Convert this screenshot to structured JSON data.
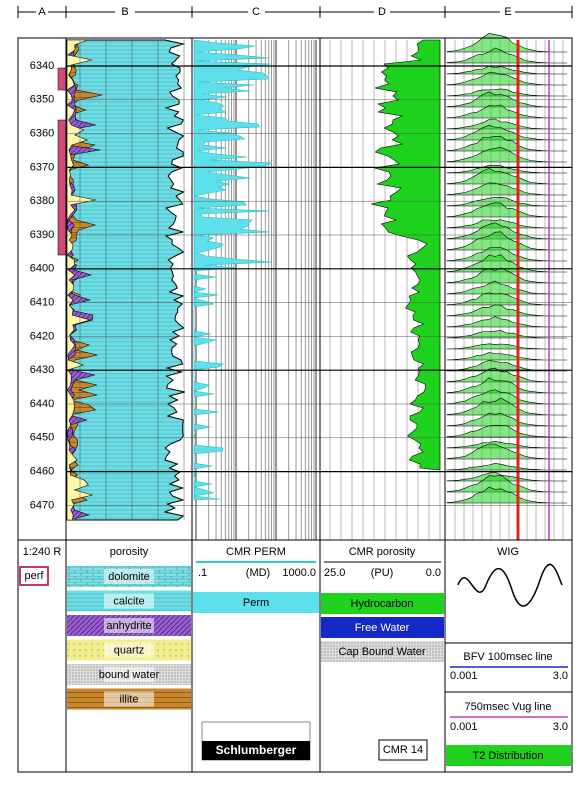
{
  "header": {
    "tracks": [
      "A",
      "B",
      "C",
      "D",
      "E"
    ]
  },
  "depth_labels": [
    6340,
    6350,
    6360,
    6370,
    6380,
    6390,
    6400,
    6410,
    6420,
    6430,
    6440,
    6450,
    6460,
    6470
  ],
  "legend": {
    "a": {
      "scale": "1:240 R",
      "perf": "perf"
    },
    "b": {
      "title": "porosity",
      "items": [
        "dolomite",
        "calcite",
        "anhydrite",
        "quartz",
        "bound water",
        "illite"
      ]
    },
    "c": {
      "title": "CMR PERM",
      "left": ".1",
      "unit": "(MD)",
      "right": "1000.0",
      "item": "Perm",
      "logo": "Schlumberger"
    },
    "d": {
      "title": "CMR porosity",
      "left": "25.0",
      "unit": "(PU)",
      "right": "0.0",
      "items": [
        "Hydrocarbon",
        "Free Water",
        "Cap Bound Water"
      ],
      "tool": "CMR 14"
    },
    "e": {
      "title": "WIG",
      "line1": {
        "name": "BFV 100msec line",
        "left": "0.001",
        "right": "3.0"
      },
      "line2": {
        "name": "750msec Vug line",
        "left": "0.001",
        "right": "3.0"
      },
      "item": "T2 Distribution"
    }
  }
}
